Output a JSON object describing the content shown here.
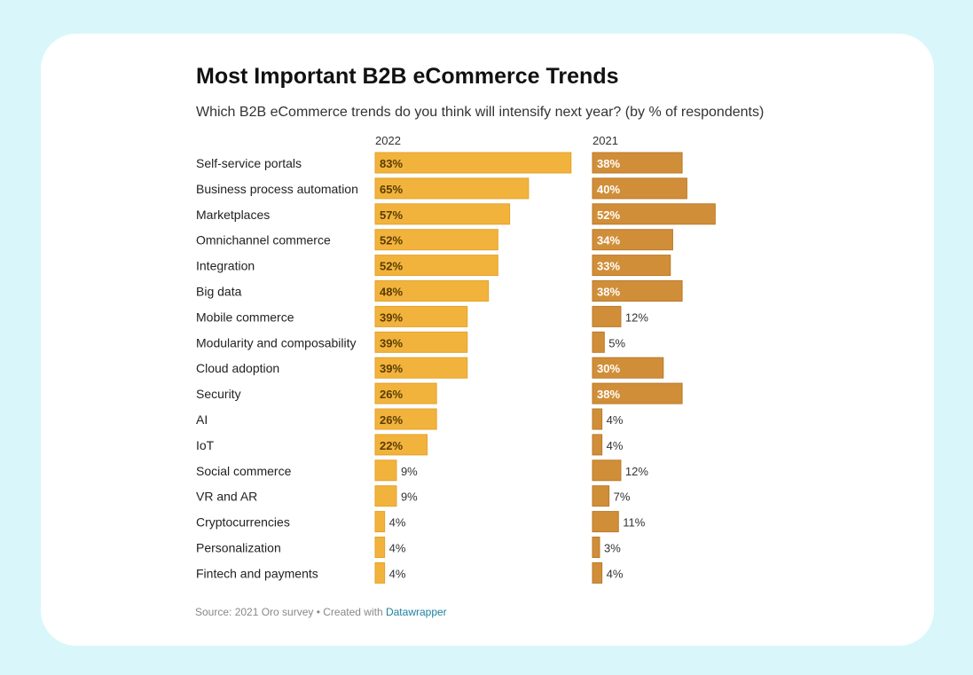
{
  "chart_data": {
    "type": "bar",
    "title": "Most Important B2B eCommerce Trends",
    "subtitle": "Which B2B eCommerce trends do you think will intensify next year? (by % of respondents)",
    "categories": [
      "Self-service portals",
      "Business process automation",
      "Marketplaces",
      "Omnichannel commerce",
      "Integration",
      "Big data",
      "Mobile commerce",
      "Modularity and composability",
      "Cloud adoption",
      "Security",
      "AI",
      "IoT",
      "Social commerce",
      "VR and AR",
      "Cryptocurrencies",
      "Personalization",
      "Fintech and payments"
    ],
    "series": [
      {
        "name": "2022",
        "color": "#f2b33d",
        "stroke": "#e3a22a",
        "values": [
          83,
          65,
          57,
          52,
          52,
          48,
          39,
          39,
          39,
          26,
          26,
          22,
          9,
          9,
          4,
          4,
          4
        ]
      },
      {
        "name": "2021",
        "color": "#d18e38",
        "stroke": "#b97a2a",
        "values": [
          38,
          40,
          52,
          34,
          33,
          38,
          12,
          5,
          30,
          38,
          4,
          4,
          12,
          7,
          11,
          3,
          4
        ]
      }
    ],
    "value_suffix": "%",
    "xlabel": "",
    "ylabel": "% of respondents"
  },
  "footer": {
    "source": "Source: 2021 Oro survey • Created with ",
    "link": "Datawrapper"
  }
}
